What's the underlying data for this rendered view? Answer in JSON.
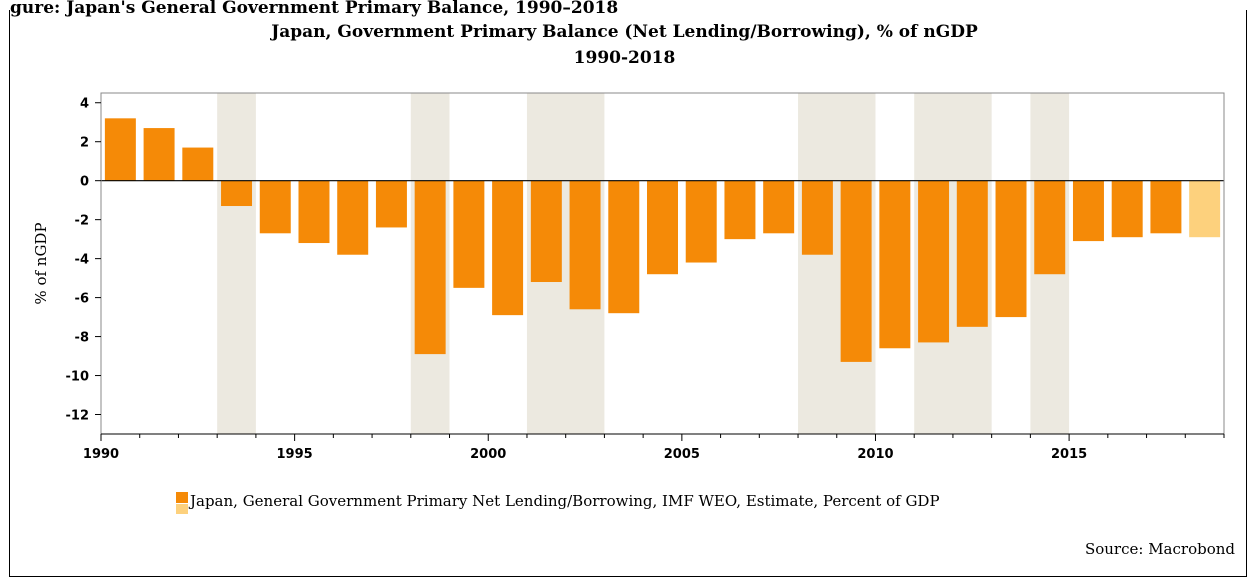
{
  "figure": {
    "cut_heading": "gure: Japan's General Government Primary Balance, 1990–2018",
    "source": "Source: Macrobond"
  },
  "chart_data": {
    "type": "bar",
    "title": "Japan, Government Primary Balance (Net Lending/Borrowing), % of nGDP",
    "subtitle": "1990-2018",
    "ylabel": "% of nGDP",
    "xlabel": "",
    "ylim": [
      -13,
      4.5
    ],
    "xlim": [
      1990,
      2019
    ],
    "y_ticks": [
      4,
      2,
      0,
      -2,
      -4,
      -6,
      -8,
      -10,
      -12
    ],
    "x_ticks": [
      1990,
      1995,
      2000,
      2005,
      2010,
      2015
    ],
    "grid": false,
    "legend_position": "bottom",
    "colors": {
      "actual": "#f58a07",
      "estimate": "#fdd17d",
      "shade": "#ece9e0"
    },
    "shaded_periods": [
      [
        1993,
        1994
      ],
      [
        1998,
        1999
      ],
      [
        2001,
        2003
      ],
      [
        2008,
        2010
      ],
      [
        2011,
        2013
      ],
      [
        2014,
        2015
      ]
    ],
    "x": [
      1990,
      1991,
      1992,
      1993,
      1994,
      1995,
      1996,
      1997,
      1998,
      1999,
      2000,
      2001,
      2002,
      2003,
      2004,
      2005,
      2006,
      2007,
      2008,
      2009,
      2010,
      2011,
      2012,
      2013,
      2014,
      2015,
      2016,
      2017,
      2018
    ],
    "series": [
      {
        "name": "Japan, General Government Primary Net Lending/Borrowing, IMF WEO, Estimate, Percent of GDP",
        "values": [
          3.2,
          2.7,
          1.7,
          -1.3,
          -2.7,
          -3.2,
          -3.8,
          -2.4,
          -8.9,
          -5.5,
          -6.9,
          -5.2,
          -6.6,
          -6.8,
          -4.8,
          -4.2,
          -3.0,
          -2.7,
          -3.8,
          -9.3,
          -8.6,
          -8.3,
          -7.5,
          -7.0,
          -4.8,
          -3.1,
          -2.9,
          -2.7,
          -2.9
        ],
        "estimate_from": 2018
      }
    ]
  }
}
